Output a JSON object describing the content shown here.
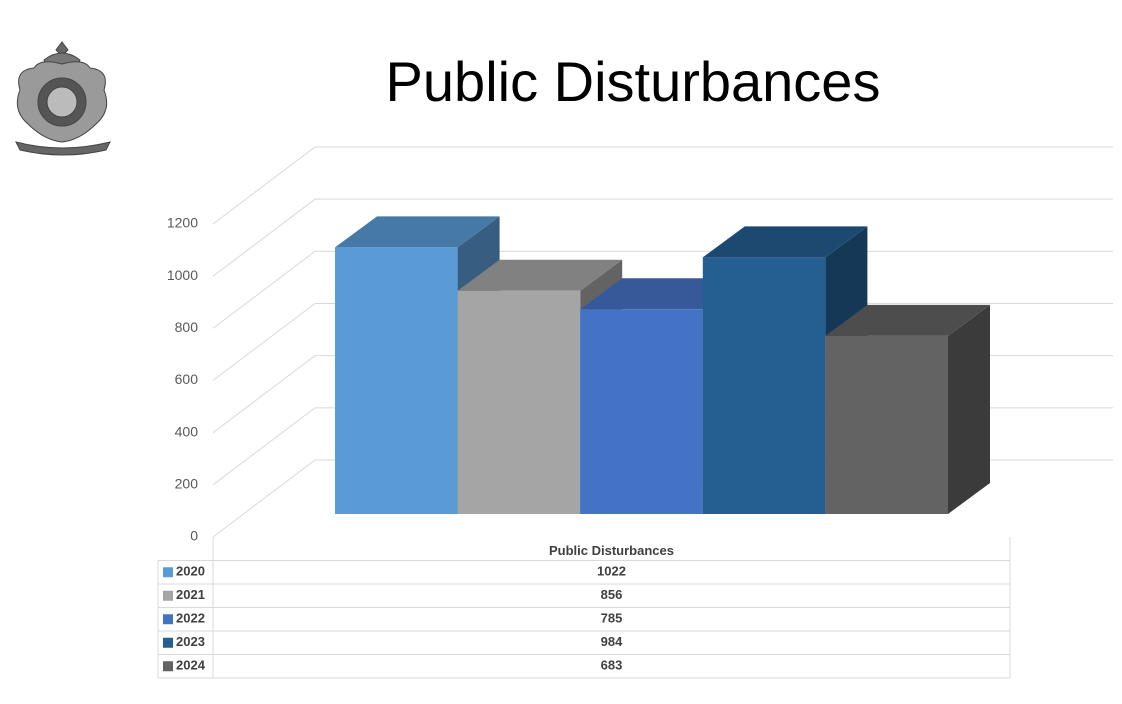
{
  "chart_data": {
    "type": "bar3d",
    "title": "Public Disturbances",
    "categories": [
      "Public Disturbances"
    ],
    "series": [
      {
        "name": "2020",
        "color": "#5b9bd5",
        "values": [
          1022
        ]
      },
      {
        "name": "2021",
        "color": "#a5a5a5",
        "values": [
          856
        ]
      },
      {
        "name": "2022",
        "color": "#4472c4",
        "values": [
          785
        ]
      },
      {
        "name": "2023",
        "color": "#255e91",
        "values": [
          984
        ]
      },
      {
        "name": "2024",
        "color": "#636363",
        "values": [
          683
        ]
      }
    ],
    "ylim": [
      0,
      1200
    ],
    "yticks": [
      0,
      200,
      400,
      600,
      800,
      1000,
      1200
    ],
    "grid": true
  }
}
